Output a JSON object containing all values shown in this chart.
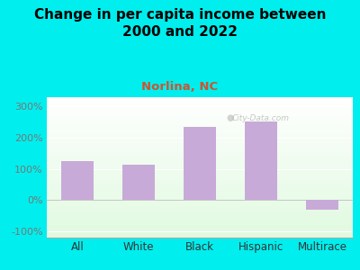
{
  "categories": [
    "All",
    "White",
    "Black",
    "Hispanic",
    "Multirace"
  ],
  "values": [
    125,
    115,
    235,
    252,
    -30
  ],
  "bar_color": "#c8aad8",
  "title_line1": "Change in per capita income between",
  "title_line2": "2000 and 2022",
  "subtitle": "Norlina, NC",
  "subtitle_color": "#cc5533",
  "title_color": "#000000",
  "title_fontsize": 11,
  "subtitle_fontsize": 9.5,
  "xlabel_fontsize": 8.5,
  "ylabel_fontsize": 8,
  "background_color": "#00eeee",
  "yticks": [
    -100,
    0,
    100,
    200,
    300
  ],
  "ylim": [
    -120,
    330
  ],
  "tick_label_color": "#777777",
  "xtick_label_color": "#333333",
  "watermark": "City-Data.com"
}
